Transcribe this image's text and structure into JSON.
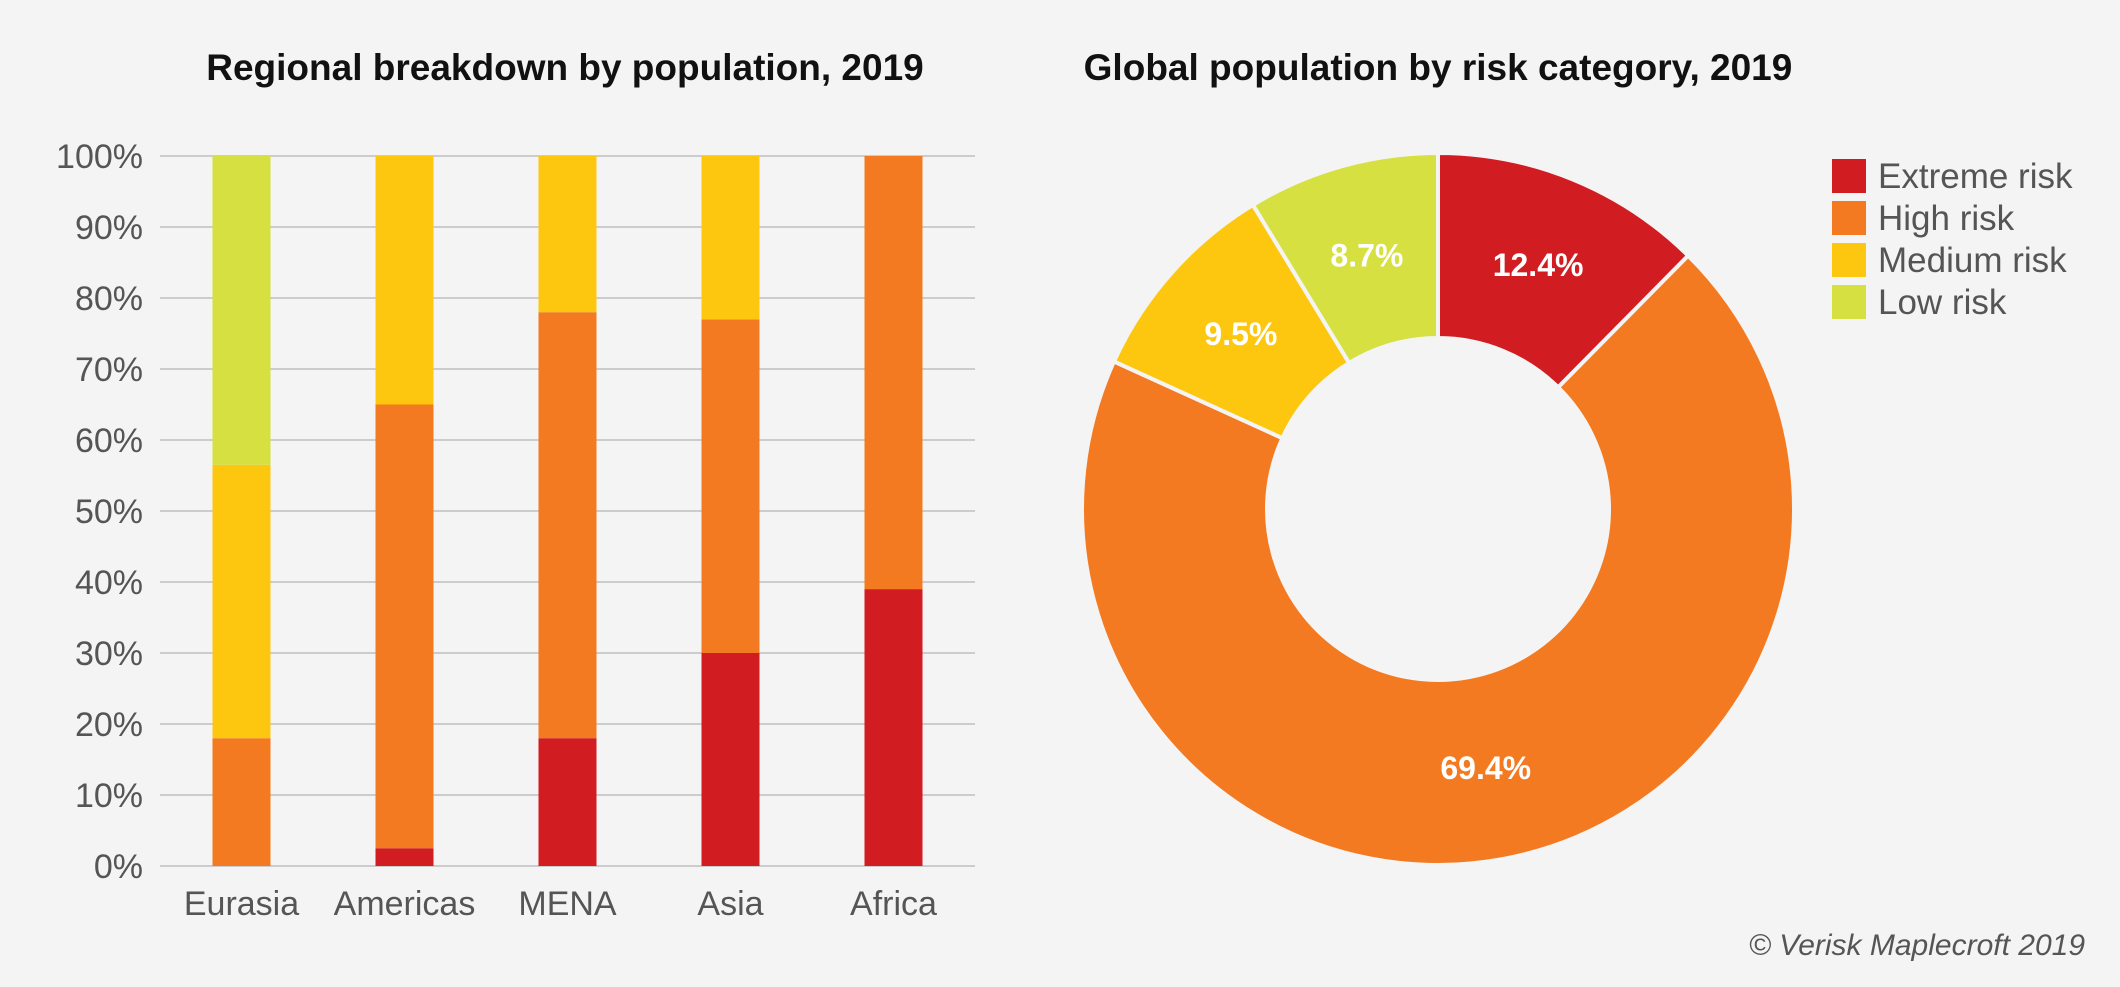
{
  "colors": {
    "extreme": "#d11c21",
    "high": "#f47a21",
    "medium": "#fec70f",
    "low": "#d6e041",
    "grid": "#cccccc"
  },
  "chart_data": [
    {
      "type": "bar",
      "stacked": true,
      "title": "Regional breakdown by population, 2019",
      "categories": [
        "Eurasia",
        "Americas",
        "MENA",
        "Asia",
        "Africa"
      ],
      "y_ticks": [
        "0%",
        "10%",
        "20%",
        "30%",
        "40%",
        "50%",
        "60%",
        "70%",
        "80%",
        "90%",
        "100%"
      ],
      "ylim": [
        0,
        100
      ],
      "grid": true,
      "series": [
        {
          "name": "Extreme risk",
          "color_key": "extreme",
          "values": [
            0,
            2.5,
            18,
            30,
            39
          ]
        },
        {
          "name": "High risk",
          "color_key": "high",
          "values": [
            18,
            62.5,
            60,
            47,
            61
          ]
        },
        {
          "name": "Medium risk",
          "color_key": "medium",
          "values": [
            38.5,
            35,
            22,
            23,
            0
          ]
        },
        {
          "name": "Low risk",
          "color_key": "low",
          "values": [
            43.5,
            0,
            0,
            0,
            0
          ]
        }
      ]
    },
    {
      "type": "pie",
      "donut": true,
      "title": "Global population by risk category, 2019",
      "slices": [
        {
          "name": "Extreme risk",
          "value": 12.4,
          "label": "12.4%",
          "color_key": "extreme"
        },
        {
          "name": "High risk",
          "value": 69.4,
          "label": "69.4%",
          "color_key": "high"
        },
        {
          "name": "Medium risk",
          "value": 9.5,
          "label": "9.5%",
          "color_key": "medium"
        },
        {
          "name": "Low risk",
          "value": 8.7,
          "label": "8.7%",
          "color_key": "low"
        }
      ],
      "legend": {
        "position": "top-right",
        "items": [
          {
            "label": "Extreme risk",
            "color_key": "extreme"
          },
          {
            "label": "High risk",
            "color_key": "high"
          },
          {
            "label": "Medium risk",
            "color_key": "medium"
          },
          {
            "label": "Low risk",
            "color_key": "low"
          }
        ]
      }
    }
  ],
  "credit": "© Verisk Maplecroft 2019"
}
